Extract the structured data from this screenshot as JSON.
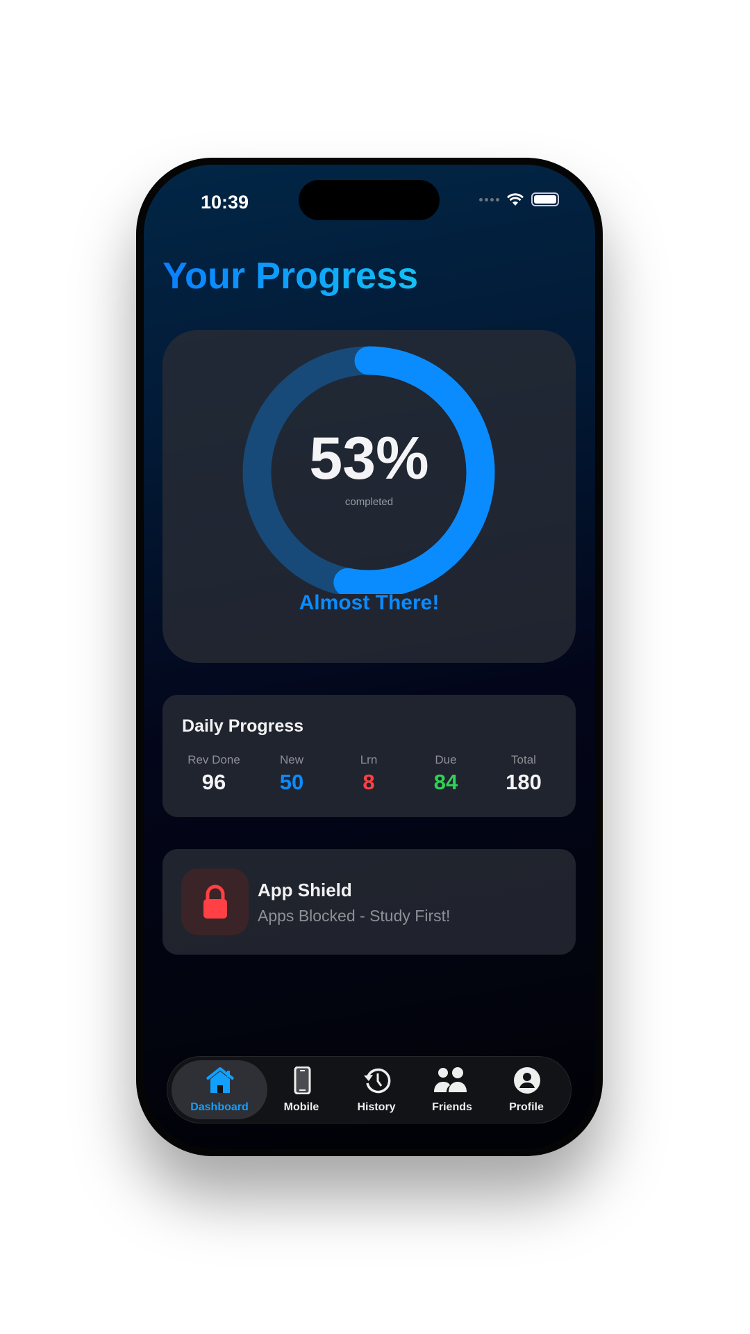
{
  "status_bar": {
    "time": "10:39"
  },
  "header": {
    "title": "Your Progress"
  },
  "progress": {
    "percent_label": "53%",
    "percent": 53,
    "caption": "completed",
    "message": "Almost There!",
    "colors": {
      "fill": "#0a8cff",
      "track": "#174a78"
    }
  },
  "daily": {
    "title": "Daily Progress",
    "stats": [
      {
        "label": "Rev Done",
        "value": "96",
        "color": "#f4f4f6"
      },
      {
        "label": "New",
        "value": "50",
        "color": "#0a8cff"
      },
      {
        "label": "Lrn",
        "value": "8",
        "color": "#ff4044"
      },
      {
        "label": "Due",
        "value": "84",
        "color": "#30d158"
      },
      {
        "label": "Total",
        "value": "180",
        "color": "#f4f4f6"
      }
    ]
  },
  "shield": {
    "title": "App Shield",
    "subtitle": "Apps Blocked - Study First!",
    "icon": "lock-icon",
    "color": "#ff4044"
  },
  "tabs": [
    {
      "label": "Dashboard",
      "icon": "house-icon",
      "active": true
    },
    {
      "label": "Mobile",
      "icon": "phone-icon"
    },
    {
      "label": "History",
      "icon": "history-icon"
    },
    {
      "label": "Friends",
      "icon": "people-icon"
    },
    {
      "label": "Profile",
      "icon": "profile-icon"
    }
  ]
}
